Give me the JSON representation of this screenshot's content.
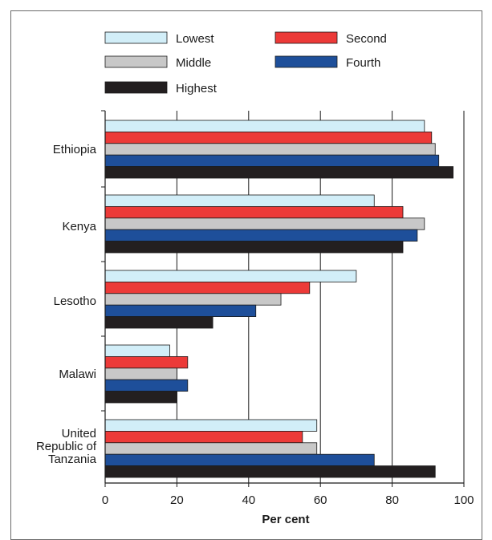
{
  "chart_data": {
    "type": "bar",
    "orientation": "horizontal",
    "categories": [
      "Ethiopia",
      "Kenya",
      "Lesotho",
      "Malawi",
      "United Republic of Tanzania"
    ],
    "category_label_lines": [
      [
        "Ethiopia"
      ],
      [
        "Kenya"
      ],
      [
        "Lesotho"
      ],
      [
        "Malawi"
      ],
      [
        "United",
        "Republic of",
        "Tanzania"
      ]
    ],
    "series": [
      {
        "name": "Lowest",
        "color": "#d2eef8",
        "values": [
          89,
          75,
          70,
          18,
          59
        ]
      },
      {
        "name": "Second",
        "color": "#ec3a38",
        "values": [
          91,
          83,
          57,
          23,
          55
        ]
      },
      {
        "name": "Middle",
        "color": "#c8c8c8",
        "values": [
          92,
          89,
          49,
          20,
          59
        ]
      },
      {
        "name": "Fourth",
        "color": "#1e4f9a",
        "values": [
          93,
          87,
          42,
          23,
          75
        ]
      },
      {
        "name": "Highest",
        "color": "#231f20",
        "values": [
          97,
          83,
          30,
          20,
          92
        ]
      }
    ],
    "xlabel": "Per cent",
    "ylabel": "",
    "xlim": [
      0,
      100
    ],
    "xticks": [
      0,
      20,
      40,
      60,
      80,
      100
    ],
    "grid": "vertical",
    "legend_position": "top"
  }
}
